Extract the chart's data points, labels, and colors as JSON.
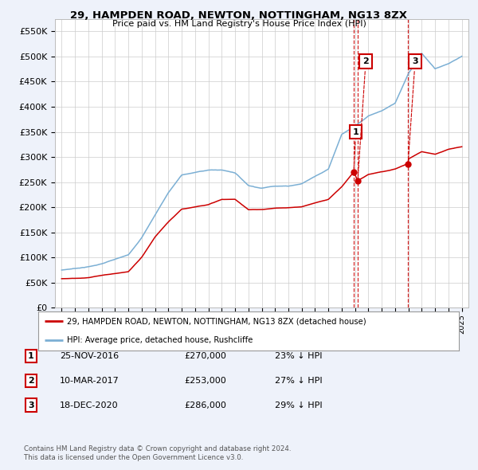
{
  "title": "29, HAMPDEN ROAD, NEWTON, NOTTINGHAM, NG13 8ZX",
  "subtitle": "Price paid vs. HM Land Registry's House Price Index (HPI)",
  "legend_property": "29, HAMPDEN ROAD, NEWTON, NOTTINGHAM, NG13 8ZX (detached house)",
  "legend_hpi": "HPI: Average price, detached house, Rushcliffe",
  "footer1": "Contains HM Land Registry data © Crown copyright and database right 2024.",
  "footer2": "This data is licensed under the Open Government Licence v3.0.",
  "transactions": [
    {
      "num": 1,
      "date": "25-NOV-2016",
      "price": "£270,000",
      "pct": "23% ↓ HPI"
    },
    {
      "num": 2,
      "date": "10-MAR-2017",
      "price": "£253,000",
      "pct": "27% ↓ HPI"
    },
    {
      "num": 3,
      "date": "18-DEC-2020",
      "price": "£286,000",
      "pct": "29% ↓ HPI"
    }
  ],
  "property_color": "#cc0000",
  "hpi_color": "#7bafd4",
  "background_color": "#eef2fa",
  "plot_bg": "#ffffff",
  "ylim": [
    0,
    575000
  ],
  "yticks": [
    0,
    50000,
    100000,
    150000,
    200000,
    250000,
    300000,
    350000,
    400000,
    450000,
    500000,
    550000
  ],
  "xlim_start": 1994.5,
  "xlim_end": 2025.5,
  "sale_years": [
    2016.9,
    2017.2,
    2020.97
  ],
  "sale_prices": [
    270000,
    253000,
    286000
  ],
  "annotation_nums": [
    1,
    2,
    3
  ]
}
